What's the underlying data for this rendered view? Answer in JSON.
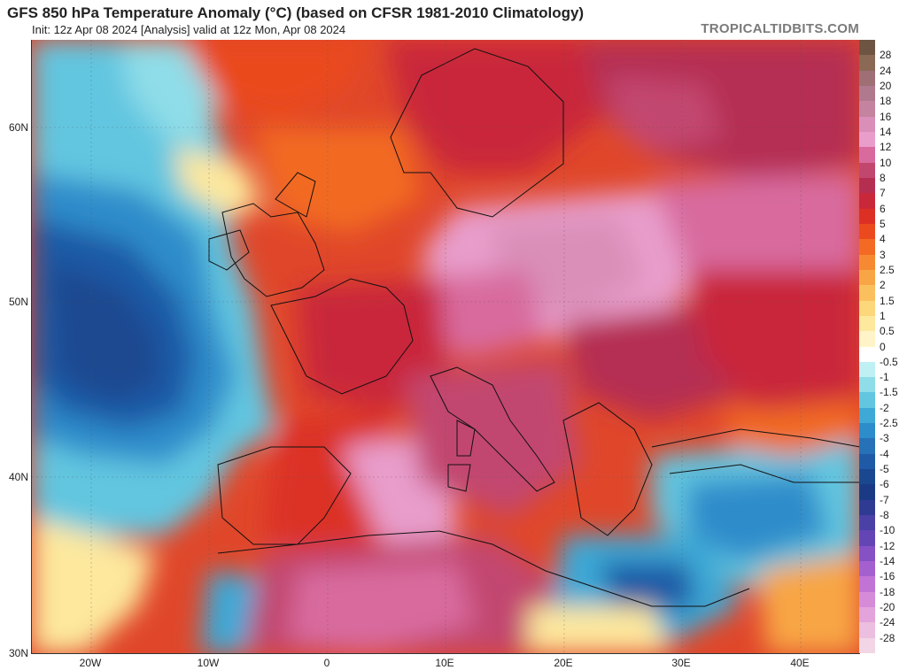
{
  "header": {
    "title": "GFS 850 hPa Temperature Anomaly (°C) (based on CFSR 1981-2010 Climatology)",
    "subtitle": "Init: 12z Apr 08 2024   [Analysis]   valid at 12z Mon, Apr 08 2024",
    "watermark": "TROPICALTIDBITS.COM"
  },
  "axes": {
    "lat_labels": [
      "60N",
      "50N",
      "40N",
      "30N"
    ],
    "lon_labels": [
      "20W",
      "10W",
      "0",
      "10E",
      "20E",
      "30E",
      "40E"
    ]
  },
  "colorbar": {
    "unit": "°C",
    "entries": [
      {
        "label": "28",
        "color": "#8a6a55"
      },
      {
        "label": "24",
        "color": "#9e6f74"
      },
      {
        "label": "20",
        "color": "#b0798e"
      },
      {
        "label": "18",
        "color": "#c4839f"
      },
      {
        "label": "16",
        "color": "#d98fb8"
      },
      {
        "label": "14",
        "color": "#e89dcb"
      },
      {
        "label": "12",
        "color": "#d86a9e"
      },
      {
        "label": "10",
        "color": "#c2476f"
      },
      {
        "label": "8",
        "color": "#b52e52"
      },
      {
        "label": "7",
        "color": "#c9283a"
      },
      {
        "label": "6",
        "color": "#dc3025"
      },
      {
        "label": "5",
        "color": "#ea4a1e"
      },
      {
        "label": "4",
        "color": "#f26a24"
      },
      {
        "label": "3",
        "color": "#f68a32"
      },
      {
        "label": "2.5",
        "color": "#f8a645"
      },
      {
        "label": "2",
        "color": "#fac05e"
      },
      {
        "label": "1.5",
        "color": "#fcd77c"
      },
      {
        "label": "1",
        "color": "#fde89e"
      },
      {
        "label": "0.5",
        "color": "#fef4c8"
      },
      {
        "label": "0",
        "color": "#ffffff"
      },
      {
        "label": "-0.5",
        "color": "#bff0f4"
      },
      {
        "label": "-1",
        "color": "#8fdde8"
      },
      {
        "label": "-1.5",
        "color": "#62c6e0"
      },
      {
        "label": "-2",
        "color": "#3ea9d6"
      },
      {
        "label": "-2.5",
        "color": "#2d8cca"
      },
      {
        "label": "-3",
        "color": "#2671b8"
      },
      {
        "label": "-4",
        "color": "#1f5aa6"
      },
      {
        "label": "-5",
        "color": "#1a4890"
      },
      {
        "label": "-6",
        "color": "#1b3a85"
      },
      {
        "label": "-7",
        "color": "#2f3a93"
      },
      {
        "label": "-8",
        "color": "#4a40a6"
      },
      {
        "label": "-10",
        "color": "#6445b6"
      },
      {
        "label": "-12",
        "color": "#8551c4"
      },
      {
        "label": "-14",
        "color": "#a460cf"
      },
      {
        "label": "-16",
        "color": "#c174d6"
      },
      {
        "label": "-18",
        "color": "#d68bd9"
      },
      {
        "label": "-20",
        "color": "#e3a3db"
      },
      {
        "label": "-24",
        "color": "#ecbedf"
      },
      {
        "label": "-28",
        "color": "#f3d6e6"
      }
    ]
  }
}
